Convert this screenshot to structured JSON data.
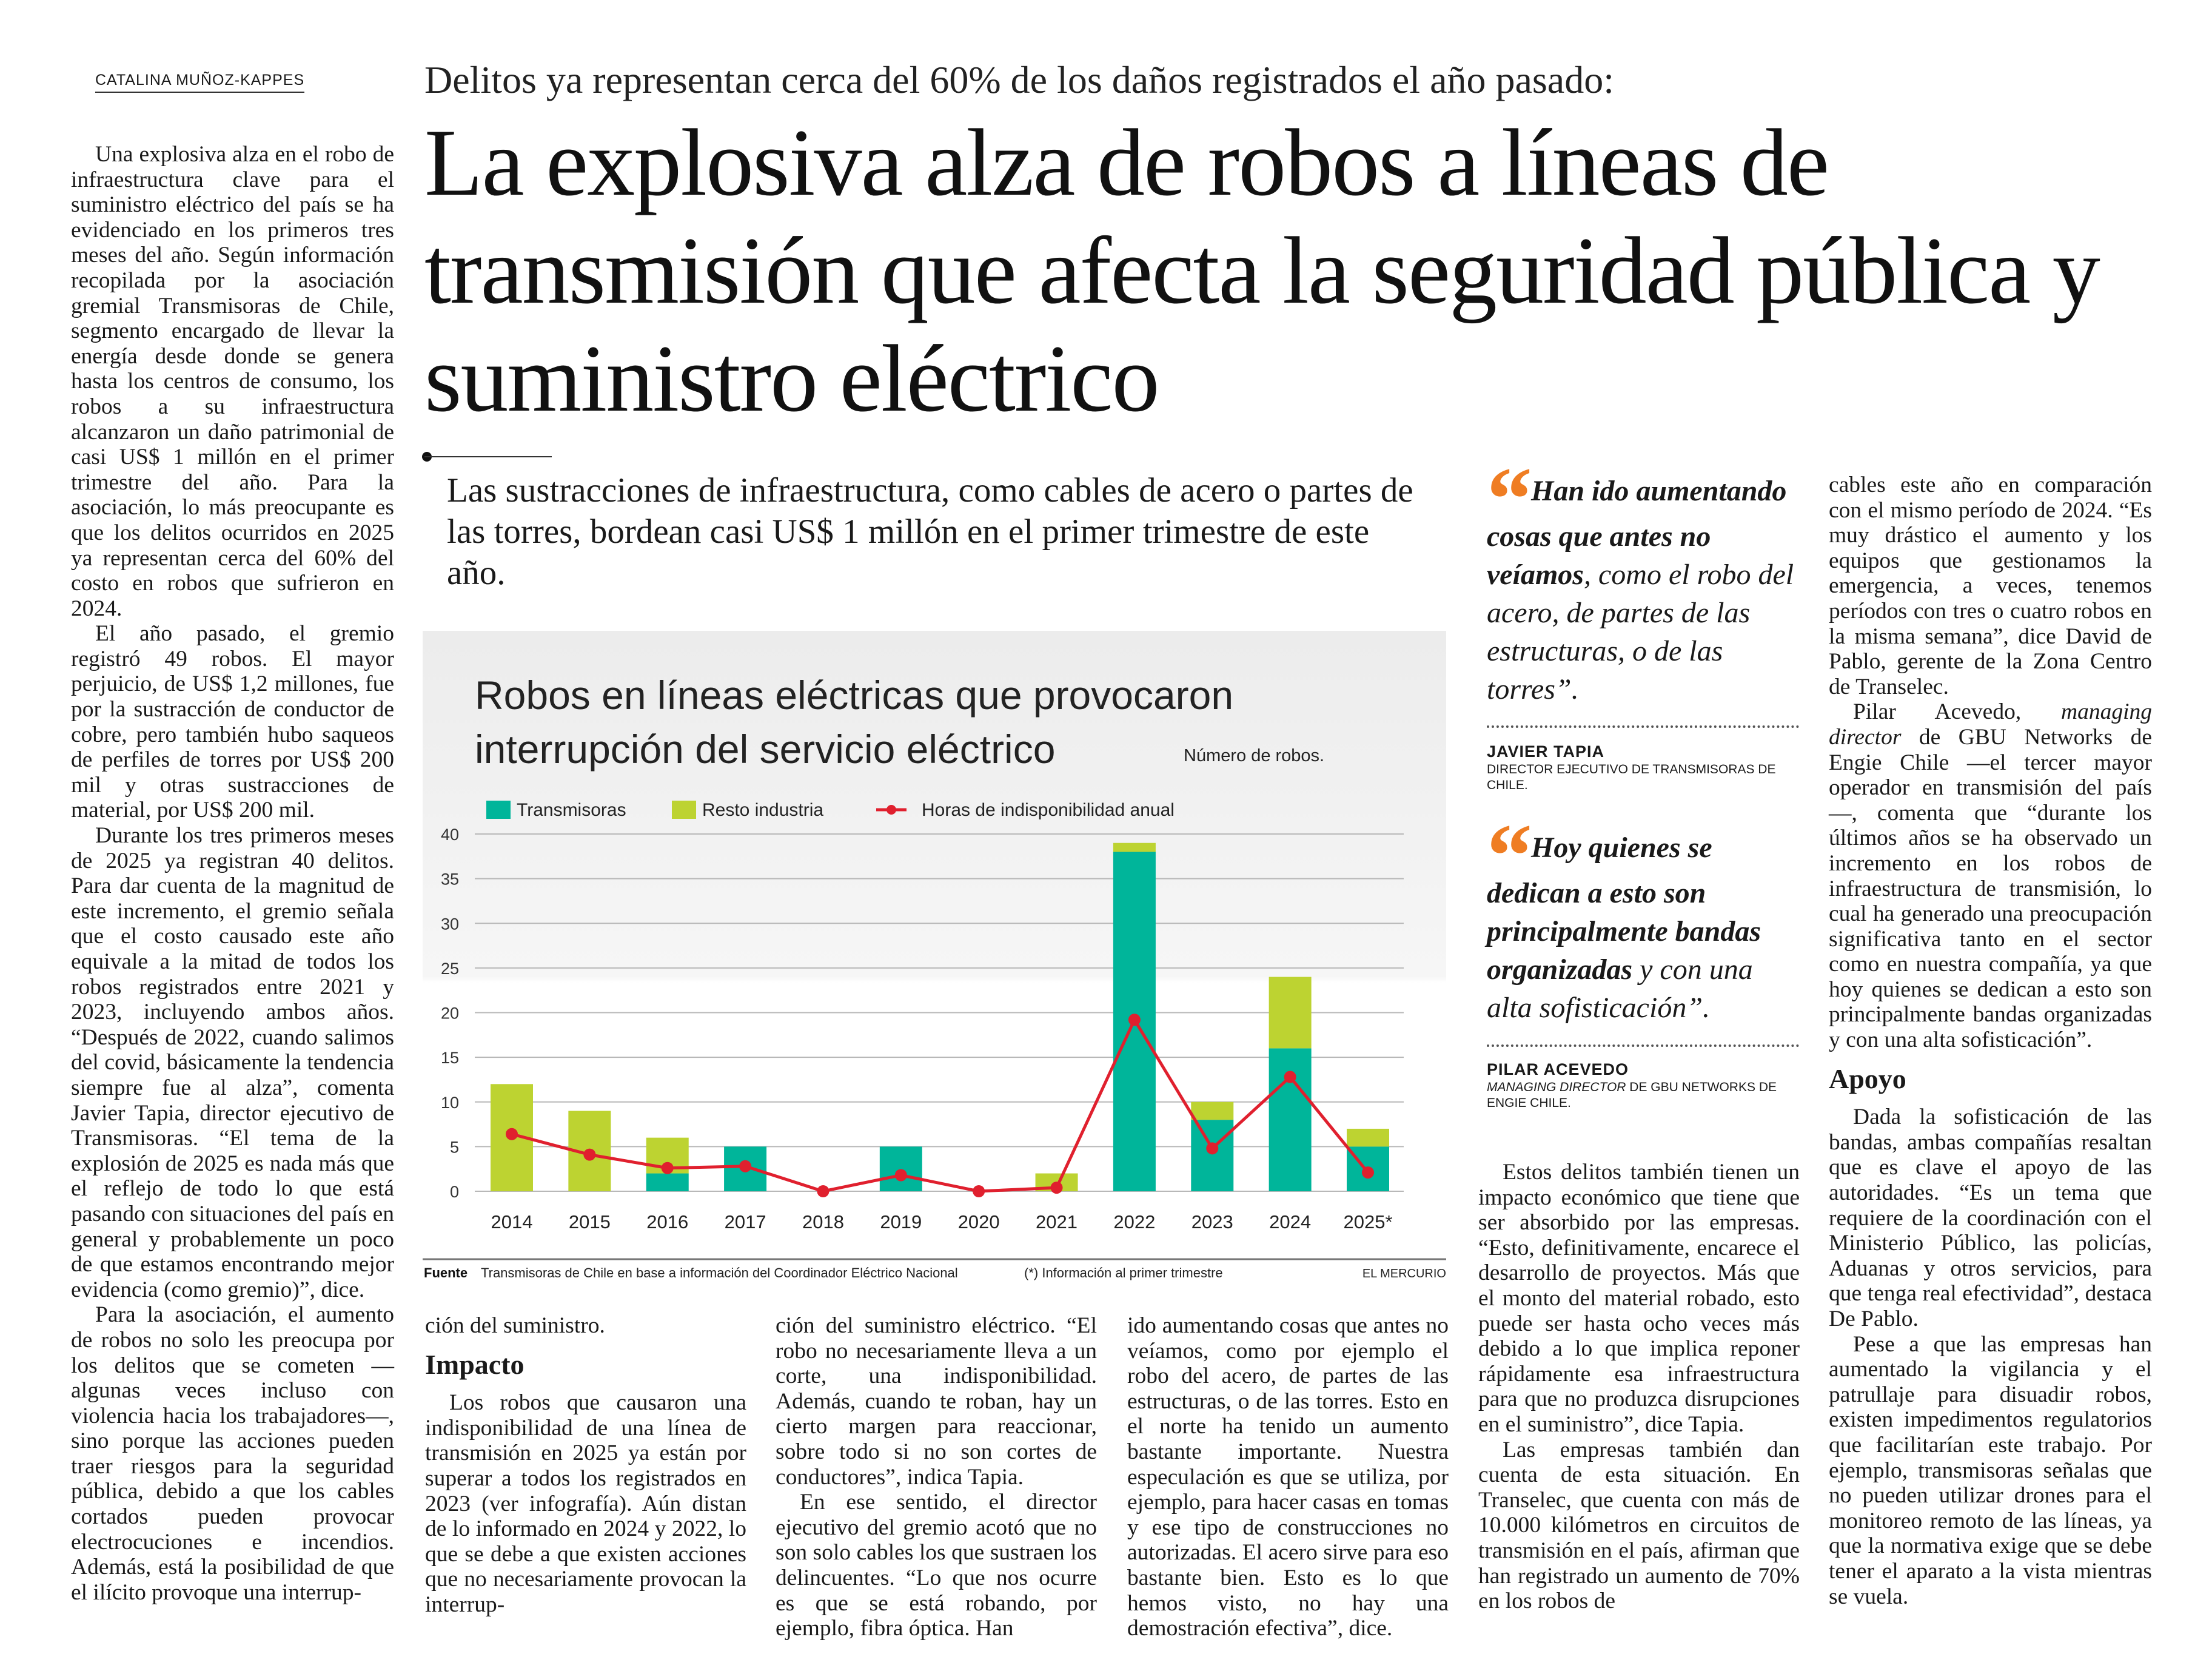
{
  "byline": "CATALINA MUÑOZ-KAPPES",
  "kicker": "Delitos ya representan cerca del 60% de los daños registrados el año pasado:",
  "headline": "La explosiva alza de robos a líneas de transmisión que afecta la seguridad pública y suministro eléctrico",
  "deck": "Las sustracciones de infraestructura, como cables de acero o partes de las torres, bordean casi US$ 1 millón en el primer trimestre de este año.",
  "left_column": [
    "Una explosiva alza en el robo de infraestructura clave para el suministro eléctrico del país se ha evidenciado en los primeros tres meses del año. Según información recopilada por la asociación gremial Transmisoras de Chile, segmento encargado de llevar la energía desde donde se genera hasta los centros de consumo, los robos a su infraestructura alcanzaron un daño patrimonial de casi US$ 1 millón en el primer trimestre del año. Para la asociación, lo más preocupante es que los delitos ocurridos en 2025 ya representan cerca del 60% del costo en robos que sufrieron en 2024.",
    "El año pasado, el gremio registró 49 robos. El mayor perjuicio, de US$ 1,2 millones, fue por la sustracción de conductor de cobre, pero también hubo saqueos de perfiles de torres por US$ 200 mil y otras sustracciones de material, por US$ 200 mil.",
    "Durante los tres primeros meses de 2025 ya registran 40 delitos. Para dar cuenta de la magnitud de este incremento, el gremio señala que el costo causado este año equivale a la mitad de todos los robos registrados entre 2021 y 2023, incluyendo ambos años. “Después de 2022, cuando salimos del covid, básicamente la tendencia siempre fue al alza”, comenta Javier Tapia, director ejecutivo de Transmisoras. “El tema de la explosión de 2025 es nada más que el reflejo de todo lo que está pasando con situaciones del país en general y probablemente un poco de que estamos encontrando mejor evidencia (como gremio)”, dice.",
    "Para la asociación, el aumento de robos no solo les preocupa por los delitos que se cometen —algunas veces incluso con violencia hacia los trabajadores—, sino porque las acciones pueden traer riesgos para la seguridad pública, debido a que los cables cortados pueden provocar electrocuciones e incendios. Además, está la posibilidad de que el ilícito provoque una interrup-"
  ],
  "column_2": {
    "continuation": "ción del suministro.",
    "heading": "Impacto",
    "paragraph": "Los robos que causaron una indisponibilidad de una línea de transmisión en 2025 ya están por superar a todos los registrados en 2023 (ver infografía). Aún distan de lo informado en 2024 y 2022, lo que se debe a que existen acciones que no necesariamente provocan la interrup-"
  },
  "column_3": [
    "ción del suministro eléctrico. “El robo no necesariamente lleva a un corte, una indisponibilidad. Además, cuando te roban, hay un cierto margen para reaccionar, sobre todo si no son cortes de conductores”, indica Tapia.",
    "En ese sentido, el director ejecutivo del gremio acotó que no son solo cables los que sustraen los delincuentes. “Lo que nos ocurre es que se está robando, por ejemplo, fibra óptica. Han"
  ],
  "column_4": "ido aumentando cosas que antes no veíamos, como por ejemplo el robo del acero, de partes de las estructuras, o de las torres. Esto en el norte ha tenido un aumento bastante importante. Nuestra especulación es que se utiliza, por ejemplo, para hacer casas en tomas y ese tipo de construcciones no autorizadas. El acero sirve para eso bastante bien. Esto es lo que hemos visto, no hay una demostración efectiva”, dice.",
  "quotes": [
    {
      "bold": "Han ido aumentando cosas que antes no veíamos",
      "rest": ", como el robo del acero, de partes de las estructuras, o de las torres”.",
      "name": "JAVIER TAPIA",
      "role": "DIRECTOR EJECUTIVO DE TRANSMISORAS DE CHILE."
    },
    {
      "bold": "Hoy quienes se dedican a esto son principalmente bandas organizadas",
      "rest": " y con una alta sofisticación”.",
      "name": "PILAR ACEVEDO",
      "role_italic": "MANAGING DIRECTOR",
      "role": " DE GBU NETWORKS DE ENGIE CHILE."
    }
  ],
  "column_5": [
    "Estos delitos también tienen un impacto económico que tiene que ser absorbido por las empresas. “Esto, definitivamente, encarece el desarrollo de proyectos. Más que el monto del material robado, esto puede ser hasta ocho veces más debido a lo que implica reponer rápidamente esa infraestructura para que no produzca disrupciones en el suministro”, dice Tapia.",
    "Las empresas también dan cuenta de esta situación. En Transelec, que cuenta con más de 10.000 kilómetros en circuitos de transmisión en el país, afirman que han registrado un aumento de 70% en los robos de"
  ],
  "column_6": {
    "p1": "cables este año en comparación con el mismo período de 2024. “Es muy drástico el aumento y los equipos que gestionamos la emergencia, a veces, tenemos períodos con tres o cuatro robos en la misma semana”, dice David de Pablo, gerente de la Zona Centro de Transelec.",
    "p2_a": "Pilar Acevedo, ",
    "p2_italic": "managing director",
    "p2_b": " de GBU Networks de Engie Chile —el tercer mayor operador en transmisión del país—, comenta que “durante los últimos años se ha observado un incremento en los robos de infraestructura de transmisión, lo cual ha generado una preocupación significativa tanto en el sector como en nuestra compañía, ya que hoy quienes se dedican a esto son principalmente bandas organizadas y con una alta sofisticación”.",
    "heading": "Apoyo",
    "p3": "Dada la sofisticación de las bandas, ambas compañías resaltan que es clave el apoyo de las autoridades. “Es un tema que requiere de la coordinación con el Ministerio Público, las policías, Aduanas y otros servicios, para que tenga real efectividad”, destaca De Pablo.",
    "p4": "Pese a que las empresas han aumentado la vigilancia y el patrullaje para disuadir robos, existen impedimentos regulatorios que facilitarían este trabajo. Por ejemplo, transmisoras señalas que no pueden utilizar drones para el monitoreo remoto de las líneas, ya que la normativa exige que se debe tener el aparato a la vista mientras se vuela."
  },
  "chart_data": {
    "type": "bar",
    "stacked": true,
    "title_line1": "Robos en líneas eléctricas que provocaron",
    "title_line2": "interrupción del servicio eléctrico",
    "ylabel": "Número de robos.",
    "categories": [
      "2014",
      "2015",
      "2016",
      "2017",
      "2018",
      "2019",
      "2020",
      "2021",
      "2022",
      "2023",
      "2024",
      "2025*"
    ],
    "ylim": [
      0,
      40
    ],
    "yticks": [
      0,
      5,
      10,
      15,
      20,
      25,
      30,
      35,
      40
    ],
    "grid": true,
    "legend_position": "top-left",
    "series": [
      {
        "name": "Transmisoras",
        "kind": "bar",
        "color": "#00b59a",
        "values": [
          0,
          0,
          2,
          5,
          0,
          5,
          0,
          0,
          38,
          8,
          16,
          5
        ]
      },
      {
        "name": "Resto industria",
        "kind": "bar",
        "color": "#bdd331",
        "values": [
          12,
          9,
          4,
          0,
          0,
          0,
          0,
          2,
          1,
          2,
          8,
          2
        ]
      },
      {
        "name": "Horas de indisponibilidad anual",
        "kind": "line",
        "color": "#e0202e",
        "values": [
          6.4,
          4.1,
          2.6,
          2.8,
          0,
          1.8,
          0,
          0.4,
          19.2,
          4.8,
          12.8,
          2.1
        ]
      }
    ],
    "source_label": "Fuente",
    "source": "Transmisoras de Chile en base a información del Coordinador Eléctrico Nacional",
    "note": "(*) Información al primer trimestre",
    "credit": "EL MERCURIO"
  }
}
